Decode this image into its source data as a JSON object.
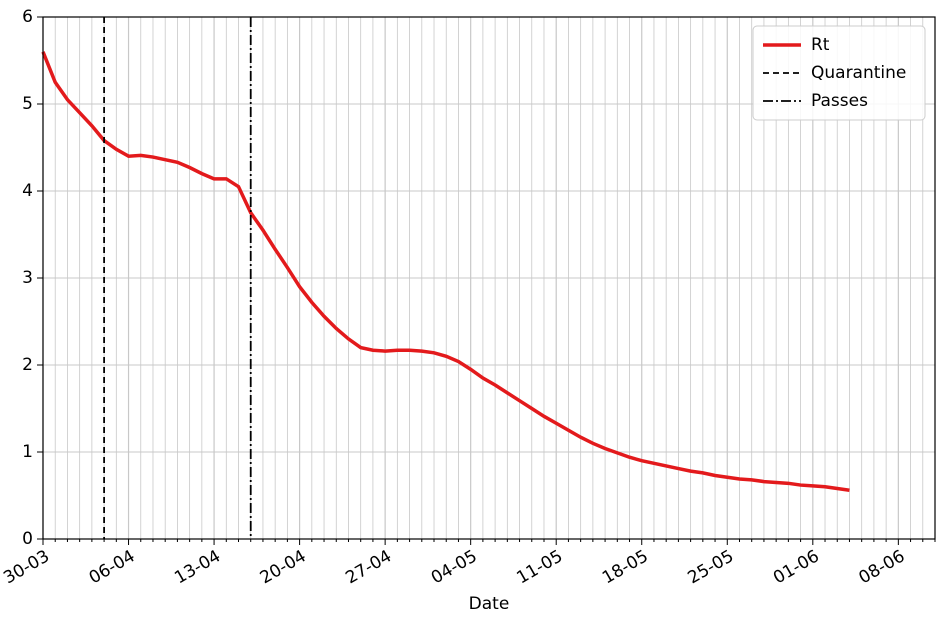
{
  "chart_data": {
    "type": "line",
    "x_label": "Date",
    "categories": [
      "30-03",
      null,
      null,
      null,
      null,
      null,
      null,
      "06-04",
      null,
      null,
      null,
      null,
      null,
      null,
      "13-04",
      null,
      null,
      null,
      null,
      null,
      null,
      "20-04",
      null,
      null,
      null,
      null,
      null,
      null,
      "27-04",
      null,
      null,
      null,
      null,
      null,
      null,
      "04-05",
      null,
      null,
      null,
      null,
      null,
      null,
      "11-05",
      null,
      null,
      null,
      null,
      null,
      null,
      "18-05",
      null,
      null,
      null,
      null,
      null,
      null,
      "25-05",
      null,
      null,
      null,
      null,
      null,
      null,
      "01-06",
      null,
      null,
      null,
      null,
      null,
      null,
      "08-06",
      null,
      null,
      null
    ],
    "series": [
      {
        "name": "Rt",
        "color": "#e31a1c",
        "values": [
          5.6,
          5.25,
          5.05,
          4.9,
          4.75,
          4.58,
          4.48,
          4.4,
          4.41,
          4.39,
          4.36,
          4.33,
          4.27,
          4.2,
          4.14,
          4.14,
          4.05,
          3.75,
          3.55,
          3.33,
          3.12,
          2.9,
          2.72,
          2.56,
          2.42,
          2.3,
          2.2,
          2.17,
          2.16,
          2.17,
          2.17,
          2.16,
          2.14,
          2.1,
          2.04,
          1.95,
          1.85,
          1.77,
          1.68,
          1.59,
          1.5,
          1.41,
          1.33,
          1.25,
          1.17,
          1.1,
          1.04,
          0.99,
          0.94,
          0.9,
          0.87,
          0.84,
          0.81,
          0.78,
          0.76,
          0.73,
          0.71,
          0.69,
          0.68,
          0.66,
          0.65,
          0.64,
          0.62,
          0.61,
          0.6,
          0.58,
          0.56,
          null,
          null,
          null,
          null,
          null,
          null,
          null
        ]
      }
    ],
    "vlines": [
      {
        "name": "Quarantine",
        "x": 5,
        "color": "#000000",
        "dash": "6,4"
      },
      {
        "name": "Passes",
        "x": 17,
        "color": "#000000",
        "dash": "10,3,2,3"
      }
    ],
    "ylim": [
      0,
      6
    ],
    "yticks": [
      0,
      1,
      2,
      3,
      4,
      5,
      6
    ],
    "grid": true,
    "legend": "upper right"
  }
}
